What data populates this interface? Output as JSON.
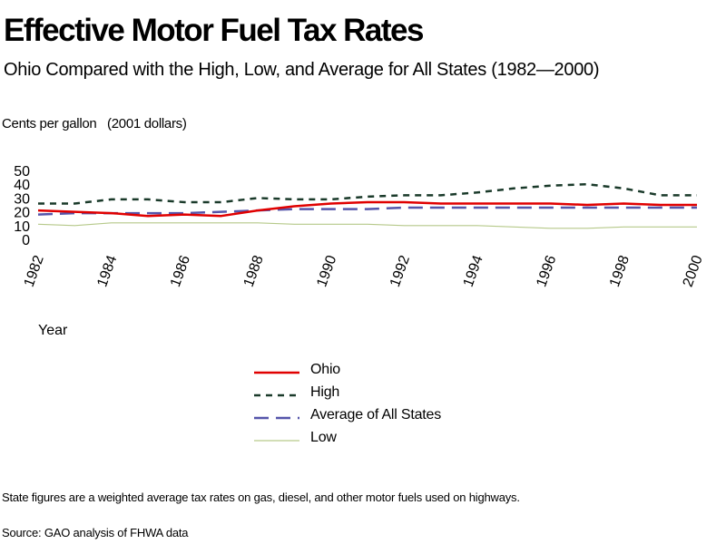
{
  "chart_data": {
    "type": "line",
    "title": "Effective Motor Fuel Tax Rates",
    "subtitle": "Ohio Compared with the High, Low, and Average for All States (1982—2000)",
    "ylabel": "Cents per gallon   (2001 dollars)",
    "xlabel": "Year",
    "ylim": [
      0,
      50
    ],
    "yticks": [
      "50",
      "40",
      "30",
      "20",
      "10",
      "0"
    ],
    "xlim": [
      1982,
      2000
    ],
    "x": [
      1982,
      1983,
      1984,
      1985,
      1986,
      1987,
      1988,
      1989,
      1990,
      1991,
      1992,
      1993,
      1994,
      1995,
      1996,
      1997,
      1998,
      1999,
      2000
    ],
    "xticks": [
      "1982",
      "1984",
      "1986",
      "1988",
      "1990",
      "1992",
      "1994",
      "1996",
      "1998",
      "2000"
    ],
    "grid": false,
    "legend_position": "bottom-center",
    "series": [
      {
        "name": "Ohio",
        "color": "#e00000",
        "dash": "solid",
        "width": 2.5,
        "values": [
          21,
          20,
          19,
          17,
          18,
          17,
          21,
          24,
          26,
          27,
          27,
          26,
          26,
          26,
          26,
          25,
          26,
          25,
          25
        ]
      },
      {
        "name": "High",
        "color": "#1a3a2a",
        "dash": "dotted",
        "width": 2.5,
        "values": [
          26,
          26,
          29,
          29,
          27,
          27,
          30,
          29,
          29,
          31,
          32,
          32,
          34,
          37,
          39,
          40,
          37,
          32,
          32
        ]
      },
      {
        "name": "Average of All States",
        "color": "#5555aa",
        "dash": "dashed",
        "width": 2.5,
        "values": [
          18,
          19,
          19,
          19,
          19,
          20,
          21,
          22,
          22,
          22,
          23,
          23,
          23,
          23,
          23,
          23,
          23,
          23,
          23
        ]
      },
      {
        "name": "Low",
        "color": "#b6c98a",
        "dash": "solid",
        "width": 1.2,
        "values": [
          11,
          10,
          12,
          12,
          12,
          12,
          12,
          11,
          11,
          11,
          10,
          10,
          10,
          9,
          8,
          8,
          9,
          9,
          9
        ]
      }
    ]
  },
  "footnote": "State figures are a weighted average tax rates on gas, diesel, and other motor fuels used on highways.",
  "source": "Source: GAO analysis of FHWA data"
}
